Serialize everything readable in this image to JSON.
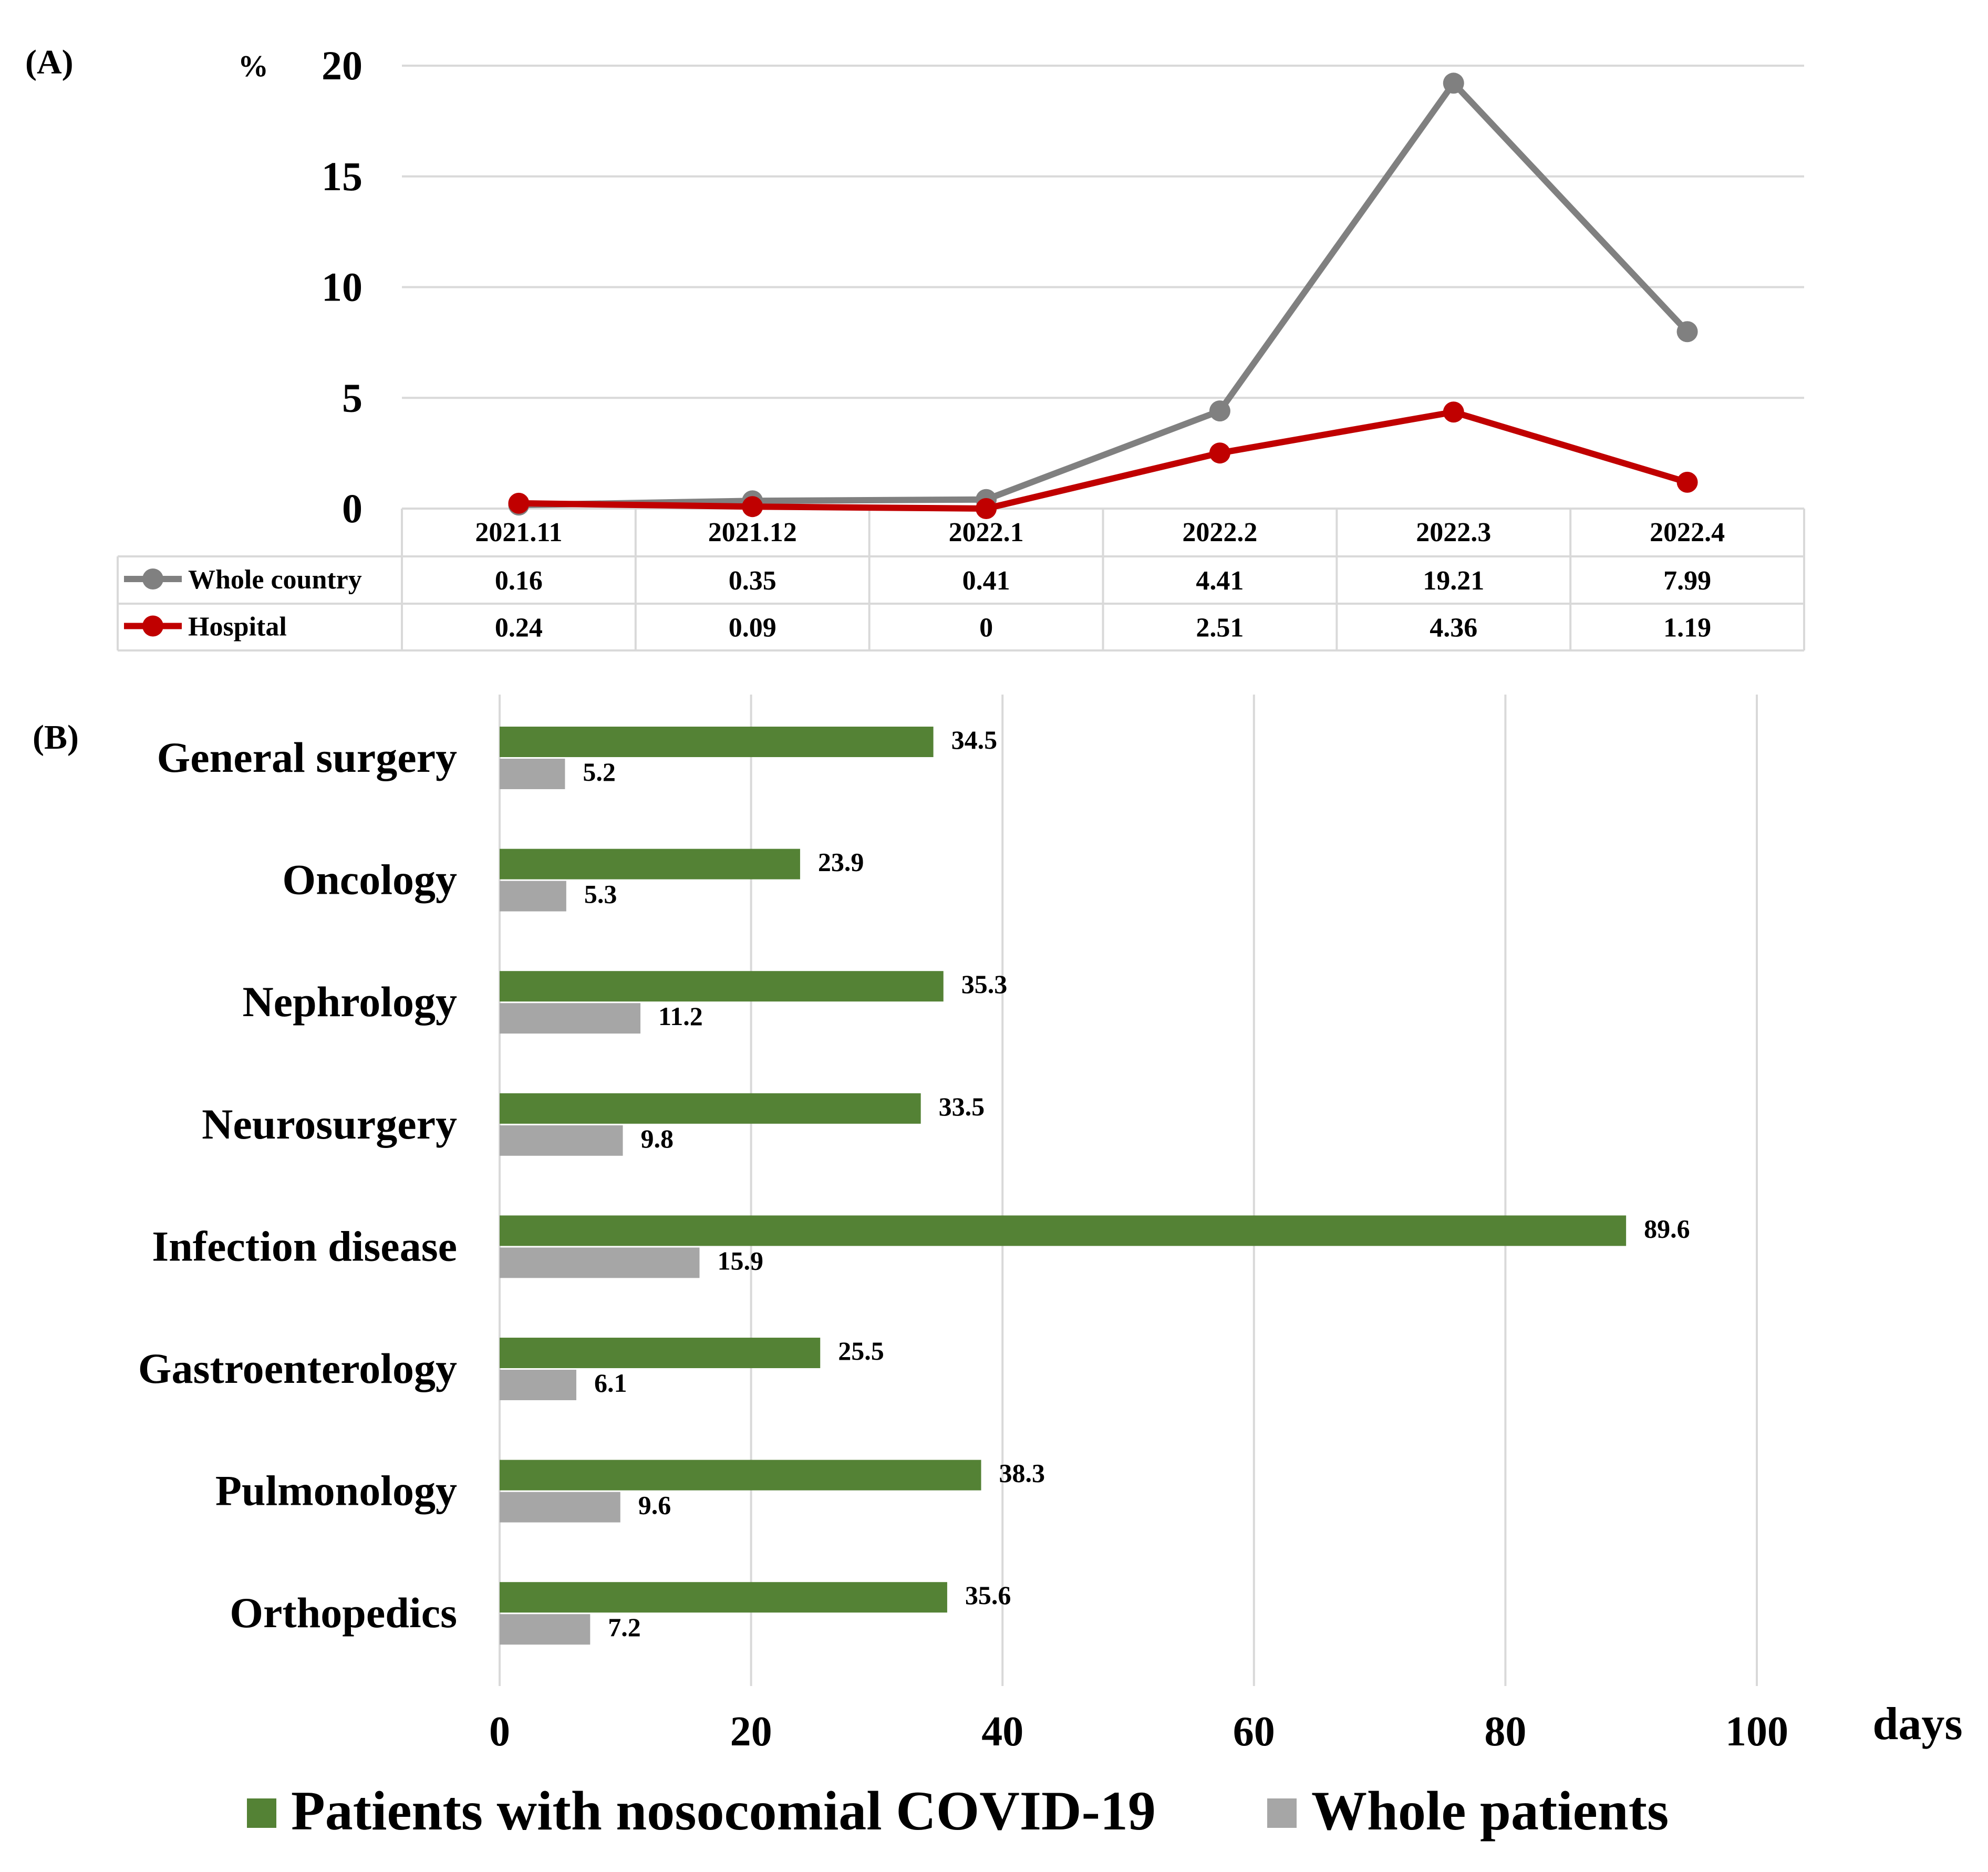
{
  "colors": {
    "whole_country": "#808080",
    "hospital": "#c00000",
    "covid_bar": "#548235",
    "whole_bar": "#a6a6a6",
    "grid": "#d9d9d9"
  },
  "chart_data": [
    {
      "type": "line",
      "panel_label": "(A)",
      "ylabel": "%",
      "ylim": [
        0,
        20
      ],
      "yticks": [
        "0",
        "5",
        "10",
        "15",
        "20"
      ],
      "categories": [
        "2021.11",
        "2021.12",
        "2022.1",
        "2022.2",
        "2022.3",
        "2022.4"
      ],
      "series": [
        {
          "name": "Whole country",
          "values": [
            0.16,
            0.35,
            0.41,
            4.41,
            19.21,
            7.99
          ],
          "labels": [
            "0.16",
            "0.35",
            "0.41",
            "4.41",
            "19.21",
            "7.99"
          ]
        },
        {
          "name": "Hospital",
          "values": [
            0.24,
            0.09,
            0,
            2.51,
            4.36,
            1.19
          ],
          "labels": [
            "0.24",
            "0.09",
            "0",
            "2.51",
            "4.36",
            "1.19"
          ]
        }
      ],
      "grid": true,
      "legend": "data-table-left"
    },
    {
      "type": "bar",
      "orientation": "horizontal",
      "panel_label": "(B)",
      "xlabel": "days",
      "xlim": [
        0,
        100
      ],
      "xticks": [
        "0",
        "20",
        "40",
        "60",
        "80",
        "100"
      ],
      "categories": [
        "General surgery",
        "Oncology",
        "Nephrology",
        "Neurosurgery",
        "Infection disease",
        "Gastroenterology",
        "Pulmonology",
        "Orthopedics"
      ],
      "series": [
        {
          "name": "Patients with nosocomial COVID-19",
          "values": [
            34.5,
            23.9,
            35.3,
            33.5,
            89.6,
            25.5,
            38.3,
            35.6
          ],
          "labels": [
            "34.5",
            "23.9",
            "35.3",
            "33.5",
            "89.6",
            "25.5",
            "38.3",
            "35.6"
          ]
        },
        {
          "name": "Whole patients",
          "values": [
            5.2,
            5.3,
            11.2,
            9.8,
            15.9,
            6.1,
            9.6,
            7.2
          ],
          "labels": [
            "5.2",
            "5.3",
            "11.2",
            "9.8",
            "15.9",
            "6.1",
            "9.6",
            "7.2"
          ]
        }
      ],
      "grid": true,
      "legend": "bottom"
    }
  ]
}
